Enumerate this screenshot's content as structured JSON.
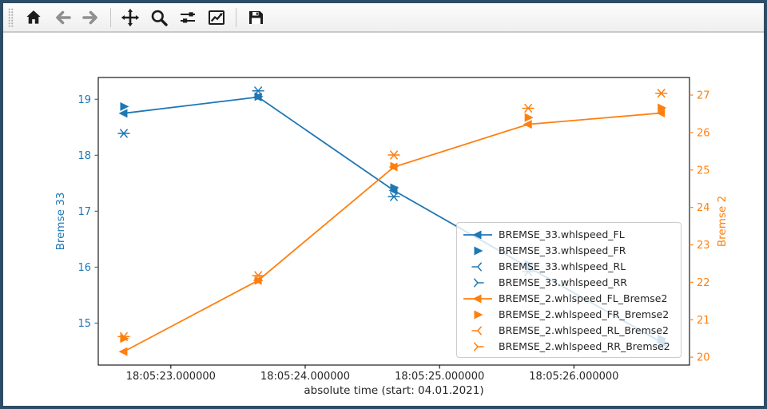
{
  "toolbar": {
    "icons": [
      {
        "name": "home",
        "enabled": true
      },
      {
        "name": "back",
        "enabled": false
      },
      {
        "name": "forward",
        "enabled": false
      },
      {
        "name": "pan",
        "enabled": true
      },
      {
        "name": "zoom-to-rect",
        "enabled": true
      },
      {
        "name": "configure-subplots",
        "enabled": true
      },
      {
        "name": "edit-axes",
        "enabled": true
      },
      {
        "name": "save",
        "enabled": true
      }
    ]
  },
  "chart_data": {
    "type": "line",
    "title": "",
    "xlabel": "absolute time (start: 04.01.2021)",
    "ylabel_left": "Bremse 33",
    "ylabel_right": "Bremse 2",
    "x_range": [
      22.46,
      26.86
    ],
    "ylim_left": [
      14.25,
      19.39
    ],
    "ylim_right": [
      19.79,
      27.47
    ],
    "x_tick_values": [
      23,
      24,
      25,
      26
    ],
    "x_tick_labels": [
      "18:05:23.000000",
      "18:05:24.000000",
      "18:05:25.000000",
      "18:05:26.000000"
    ],
    "yticks_left": [
      15,
      16,
      17,
      18,
      19
    ],
    "yticks_right": [
      20,
      21,
      22,
      23,
      24,
      25,
      26,
      27
    ],
    "grid": false,
    "legend_position": "lower right inside, semi-transparent",
    "colors": {
      "left_axis": "#1f77b4",
      "right_axis": "#ff7f0e",
      "axis_text": "#262626",
      "spine": "#1a1a1a"
    },
    "x": [
      22.65,
      23.65,
      24.66,
      25.66,
      26.65
    ],
    "series": [
      {
        "name": "BREMSE_33.whlspeed_FL",
        "axis": "left",
        "color": "#1f77b4",
        "marker": "triangle-left-filled",
        "line": true,
        "values": [
          18.75,
          19.04,
          17.37,
          16.0,
          14.66
        ]
      },
      {
        "name": "BREMSE_33.whlspeed_FR",
        "axis": "left",
        "color": "#1f77b4",
        "marker": "triangle-right-filled",
        "line": false,
        "values": [
          18.87,
          19.05,
          17.42,
          16.05,
          14.72
        ]
      },
      {
        "name": "BREMSE_33.whlspeed_RL",
        "axis": "left",
        "color": "#1f77b4",
        "marker": "tri-left-thin",
        "line": false,
        "values": [
          18.39,
          19.15,
          17.26,
          15.92,
          14.6
        ]
      },
      {
        "name": "BREMSE_33.whlspeed_RR",
        "axis": "left",
        "color": "#1f77b4",
        "marker": "tri-right-thin",
        "line": false,
        "values": [
          18.39,
          19.15,
          17.26,
          15.92,
          14.6
        ]
      },
      {
        "name": "BREMSE_2.whlspeed_FL_Bremse2",
        "axis": "right",
        "color": "#ff7f0e",
        "marker": "triangle-left-filled",
        "line": true,
        "values": [
          20.15,
          22.05,
          25.08,
          26.22,
          26.52
        ]
      },
      {
        "name": "BREMSE_2.whlspeed_FR_Bremse2",
        "axis": "right",
        "color": "#ff7f0e",
        "marker": "triangle-right-filled",
        "line": false,
        "values": [
          20.5,
          22.05,
          25.1,
          26.4,
          26.66
        ]
      },
      {
        "name": "BREMSE_2.whlspeed_RL_Bremse2",
        "axis": "right",
        "color": "#ff7f0e",
        "marker": "tri-left-thin",
        "line": false,
        "values": [
          20.55,
          22.18,
          25.4,
          26.65,
          27.05
        ]
      },
      {
        "name": "BREMSE_2.whlspeed_RR_Bremse2",
        "axis": "right",
        "color": "#ff7f0e",
        "marker": "tri-right-thin",
        "line": false,
        "values": [
          20.55,
          22.18,
          25.4,
          26.65,
          27.05
        ]
      }
    ]
  }
}
